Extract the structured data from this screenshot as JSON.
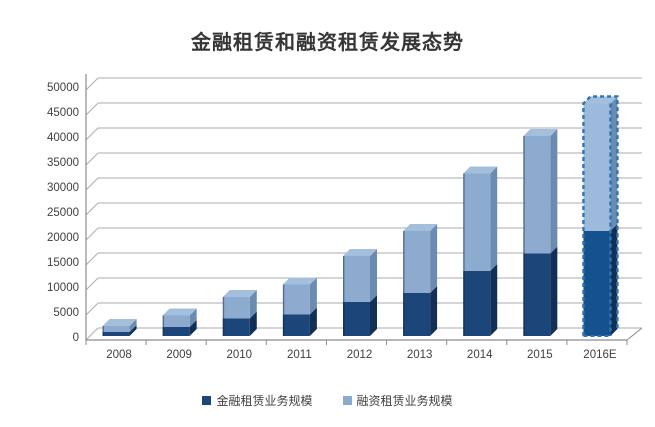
{
  "title": "金融租赁和融资租赁发展态势",
  "chart_data": {
    "type": "bar",
    "subtype": "3d-stacked-column",
    "title": "金融租赁和融资租赁发展态势",
    "categories": [
      "2008",
      "2009",
      "2010",
      "2011",
      "2012",
      "2013",
      "2014",
      "2015",
      "2016E"
    ],
    "series": [
      {
        "name": "金融租赁业务规模",
        "values": [
          800,
          1800,
          3500,
          4300,
          6800,
          8600,
          13000,
          16500,
          21000
        ],
        "color": "#1C4579"
      },
      {
        "name": "融资租赁业务规模",
        "values": [
          1200,
          2300,
          4300,
          6000,
          9200,
          12400,
          19500,
          23500,
          25500
        ],
        "color": "#8CABCF"
      }
    ],
    "totals": [
      2000,
      4100,
      7800,
      10300,
      16000,
      21000,
      32500,
      40000,
      46500
    ],
    "forecast_category": "2016E",
    "xlabel": "",
    "ylabel": "",
    "ylim": [
      0,
      50000
    ],
    "ytick_step": 5000,
    "ytick_labels": [
      "0",
      "5000",
      "10000",
      "15000",
      "20000",
      "25000",
      "30000",
      "35000",
      "40000",
      "45000",
      "50000"
    ],
    "grid": true,
    "legend_position": "bottom"
  },
  "legend": {
    "items": [
      {
        "label": "金融租赁业务规模",
        "color": "#1C4579"
      },
      {
        "label": "融资租赁业务规模",
        "color": "#8CABCF"
      }
    ]
  },
  "colors": {
    "dark_front": "#1C4579",
    "dark_top": "#2E5C93",
    "dark_side": "#122F56",
    "light_front": "#8CABCF",
    "light_top": "#A3BFDC",
    "light_side": "#6B8CB0",
    "forecast_dark": "#15508F",
    "forecast_light": "#9CBBDC",
    "forecast_dash": "#2E75B6",
    "grid_line": "#ABABAB",
    "axis_line": "#8C8C8C",
    "tick_text": "#3F3F3F",
    "title_text": "#363636",
    "background": "#FFFFFF"
  }
}
